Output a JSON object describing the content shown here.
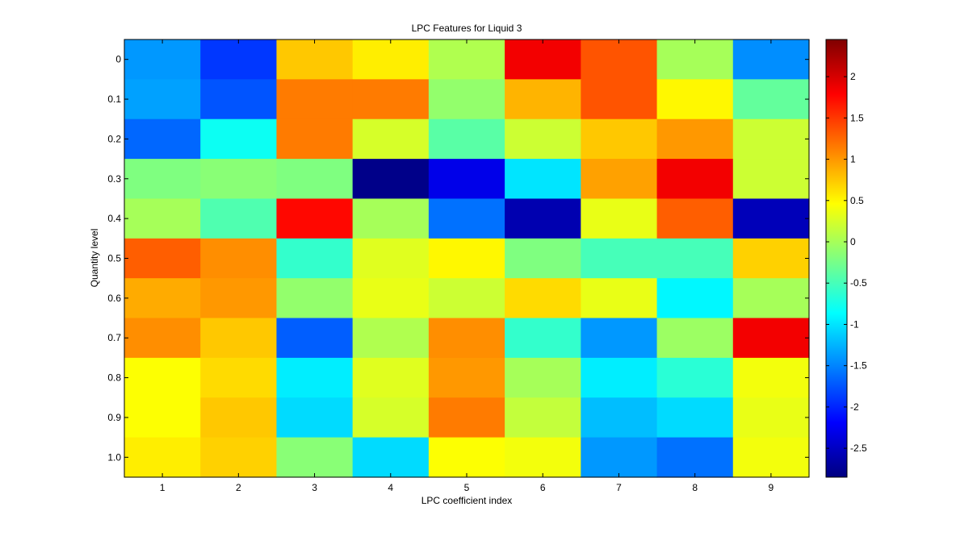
{
  "chart_data": {
    "type": "heatmap",
    "title": "LPC Features for Liquid 3",
    "xlabel": "LPC coefficient index",
    "ylabel": "Quantity level",
    "x_ticks": [
      "1",
      "2",
      "3",
      "4",
      "5",
      "6",
      "7",
      "8",
      "9"
    ],
    "y_ticks": [
      "0",
      "0.1",
      "0.2",
      "0.3",
      "0.4",
      "0.5",
      "0.6",
      "0.7",
      "0.8",
      "0.9",
      "1.0"
    ],
    "colormap": "jet",
    "clim": [
      -2.85,
      2.45
    ],
    "colorbar_ticks": [
      "2",
      "1.5",
      "1",
      "0.5",
      "0",
      "-0.5",
      "-1",
      "-1.5",
      "-2",
      "-2.5"
    ],
    "values": [
      [
        -1.4,
        -1.9,
        0.75,
        0.55,
        0.05,
        1.85,
        1.35,
        0.0,
        -1.45
      ],
      [
        -1.35,
        -1.75,
        1.15,
        1.15,
        -0.1,
        0.85,
        1.35,
        0.5,
        -0.35
      ],
      [
        -1.65,
        -0.8,
        1.15,
        0.25,
        -0.4,
        0.2,
        0.75,
        1.0,
        0.2
      ],
      [
        -0.2,
        -0.15,
        -0.2,
        -2.8,
        -2.3,
        -1.0,
        0.95,
        1.85,
        0.2
      ],
      [
        0.0,
        -0.45,
        1.75,
        0.0,
        -1.6,
        -2.6,
        0.35,
        1.3,
        -2.55
      ],
      [
        1.3,
        1.05,
        -0.6,
        0.3,
        0.5,
        -0.2,
        -0.5,
        -0.5,
        0.7
      ],
      [
        0.9,
        1.0,
        -0.1,
        0.35,
        0.2,
        0.65,
        0.35,
        -0.9,
        0.0
      ],
      [
        1.05,
        0.75,
        -1.7,
        0.05,
        1.05,
        -0.6,
        -1.4,
        -0.05,
        1.85
      ],
      [
        0.45,
        0.65,
        -0.95,
        0.3,
        1.0,
        0.0,
        -0.95,
        -0.65,
        0.4
      ],
      [
        0.45,
        0.75,
        -1.05,
        0.25,
        1.15,
        0.15,
        -1.2,
        -1.05,
        0.35
      ],
      [
        0.55,
        0.7,
        -0.15,
        -1.05,
        0.45,
        0.4,
        -1.4,
        -1.6,
        0.4
      ]
    ]
  }
}
